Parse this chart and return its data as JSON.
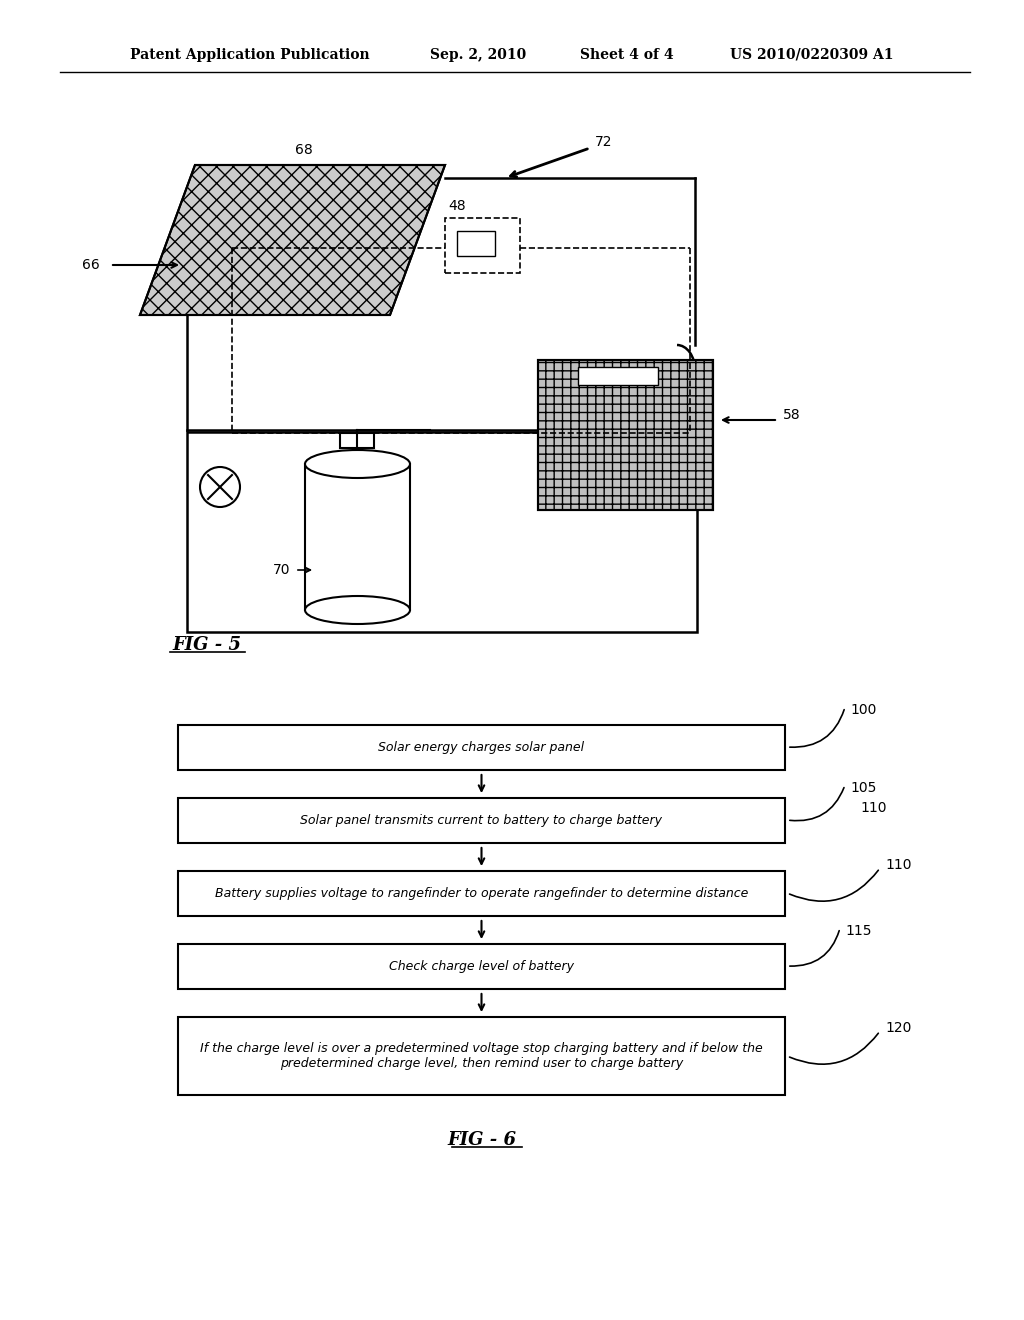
{
  "header_left": "Patent Application Publication",
  "header_center": "Sep. 2, 2010   Sheet 4 of 4",
  "header_right": "US 2010/0220309 A1",
  "fig5_label": "FIG - 5",
  "fig6_label": "FIG - 6",
  "label_66": "66",
  "label_68": "68",
  "label_70": "70",
  "label_72": "72",
  "label_48": "48",
  "label_58": "58",
  "label_100": "100",
  "label_105": "105",
  "label_110": "110",
  "label_115": "115",
  "label_120": "120",
  "flow_box1": "Solar energy charges solar panel",
  "flow_box2": "Solar panel transmits current to battery to charge battery",
  "flow_box3": "Battery supplies voltage to rangefinder to operate rangefinder to determine distance",
  "flow_box4": "Check charge level of battery",
  "flow_box5": "If the charge level is over a predetermined voltage stop charging battery and if below the\npredetermined charge level, then remind user to charge battery",
  "bg_color": "#ffffff",
  "line_color": "#000000",
  "text_color": "#000000"
}
